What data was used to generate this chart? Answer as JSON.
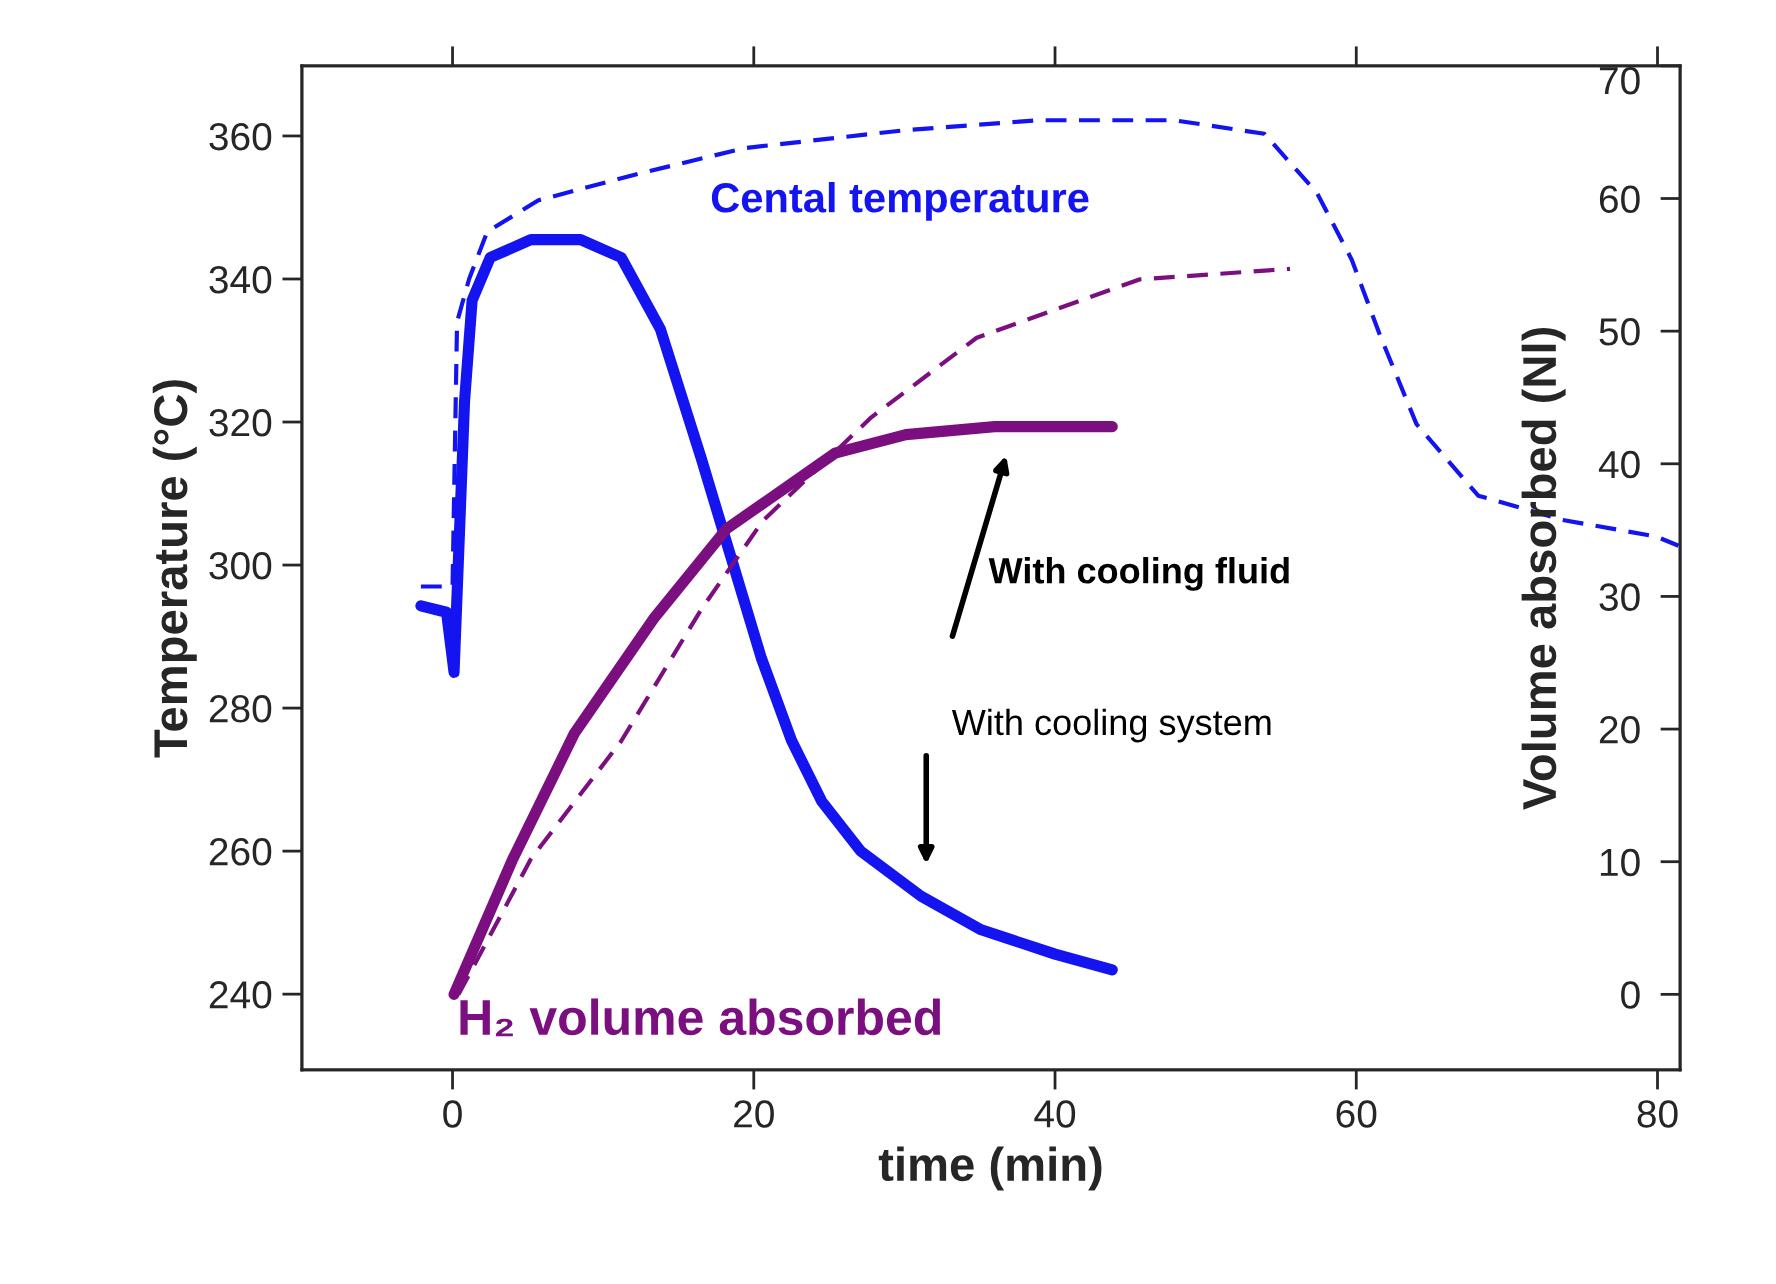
{
  "chart_data": {
    "type": "line",
    "xlabel": "time (min)",
    "ylabel": "Temperature (°C)",
    "y2label": "Volume absorbed (Nl)",
    "xlim": [
      -10,
      81.5
    ],
    "xticks": [
      0,
      20,
      40,
      60,
      80
    ],
    "ylim": [
      229.4,
      369.8
    ],
    "yticks": [
      240,
      260,
      280,
      300,
      320,
      340,
      360
    ],
    "y2lim": [
      -5.7,
      70
    ],
    "y2ticks": [
      0,
      10,
      20,
      30,
      40,
      50,
      60,
      70
    ],
    "grid": false,
    "legend": false,
    "marker": "none",
    "series": [
      {
        "color": "#1414f0",
        "line_style": "solid",
        "x": [
          -2.1,
          -0.4,
          0.1,
          0.8,
          1.3,
          2.5,
          5.2,
          8.5,
          11.2,
          13.8,
          16.5,
          18.5,
          20.5,
          22.5,
          24.5,
          27.1,
          31.1,
          35.1,
          40,
          43.8
        ],
        "values": [
          294.3,
          293.4,
          285,
          323,
          337,
          343,
          345.5,
          345.5,
          343,
          333,
          315,
          301,
          287,
          275.5,
          267,
          260,
          253.7,
          249,
          245.6,
          243.4
        ]
      },
      {
        "color": "#1414f0",
        "line_style": "dashed",
        "x": [
          -2.1,
          0,
          0.3,
          1.1,
          2.3,
          5.7,
          12.3,
          19.4,
          30,
          38.9,
          47.9,
          53.9,
          57.4,
          59.7,
          61.6,
          64,
          68.1,
          73.7,
          79.9,
          81.4
        ],
        "values": [
          297,
          297,
          334,
          340,
          346.6,
          351,
          354.7,
          358.3,
          360.8,
          362.2,
          362.2,
          360.3,
          352,
          342.7,
          332,
          319.7,
          309.7,
          306.3,
          304,
          302.7
        ]
      },
      {
        "color": "#7b0f7f",
        "line_style": "solid",
        "axis": "y2",
        "x": [
          0.1,
          4,
          8.1,
          13.4,
          18.2,
          25.4,
          30.1,
          36,
          43.8
        ],
        "values": [
          0,
          10.2,
          19.7,
          28.4,
          35.1,
          40.8,
          42.2,
          42.8,
          42.8
        ]
      },
      {
        "color": "#7b0f7f",
        "line_style": "dashed",
        "axis": "y2",
        "x": [
          0.4,
          5.2,
          11.2,
          16.5,
          20.6,
          27.8,
          34.8,
          45.6,
          55.6
        ],
        "values": [
          0,
          10.2,
          19.1,
          29,
          35.7,
          43.5,
          49.5,
          53.9,
          54.7
        ]
      }
    ],
    "annotations": [
      "Cental temperature",
      "H₂ volume absorbed",
      "With cooling fluid",
      "With cooling system"
    ]
  }
}
